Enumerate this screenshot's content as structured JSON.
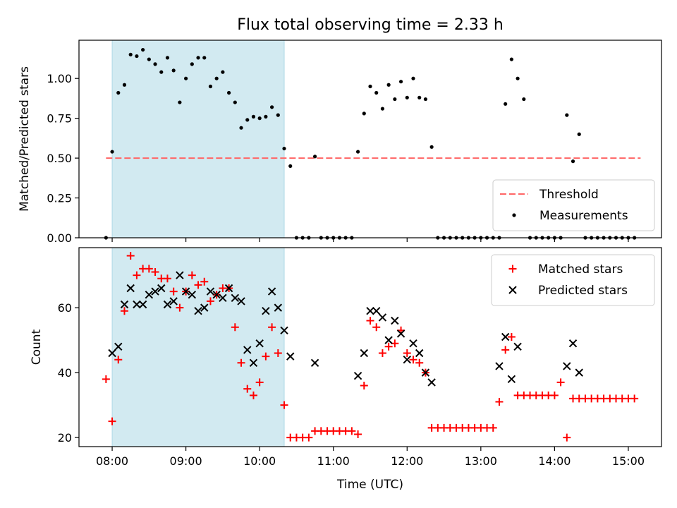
{
  "figure": {
    "title": "Flux total observing time = 2.33 h",
    "xlabel": "Time (UTC)"
  },
  "colors": {
    "shade": "#add8e6",
    "threshold": "#ff6666",
    "measurement": "#000000",
    "matched": "#ff0000",
    "predicted": "#000000"
  },
  "chart_data": [
    {
      "type": "scatter",
      "ylabel": "Matched/Predicted stars",
      "xlim": [
        "07:33",
        "15:27"
      ],
      "ylim": [
        0,
        1.24
      ],
      "yticks": [
        0.0,
        0.25,
        0.5,
        0.75,
        1.0
      ],
      "ytick_labels": [
        "0.00",
        "0.25",
        "0.50",
        "0.75",
        "1.00"
      ],
      "shaded_span": [
        "08:00",
        "10:20"
      ],
      "legend_position": "lower right",
      "threshold": {
        "name": "Threshold",
        "value": 0.5,
        "x": [
          "07:55",
          "15:10"
        ]
      },
      "series": [
        {
          "name": "Measurements",
          "x": [
            "07:55",
            "08:00",
            "08:05",
            "08:10",
            "08:15",
            "08:20",
            "08:25",
            "08:30",
            "08:35",
            "08:40",
            "08:45",
            "08:50",
            "08:55",
            "09:00",
            "09:05",
            "09:10",
            "09:15",
            "09:20",
            "09:25",
            "09:30",
            "09:35",
            "09:40",
            "09:45",
            "09:50",
            "09:55",
            "10:00",
            "10:05",
            "10:10",
            "10:15",
            "10:20",
            "10:25",
            "10:30",
            "10:35",
            "10:40",
            "10:45",
            "10:50",
            "10:55",
            "11:00",
            "11:05",
            "11:10",
            "11:15",
            "11:20",
            "11:25",
            "11:30",
            "11:35",
            "11:40",
            "11:45",
            "11:50",
            "11:55",
            "12:00",
            "12:05",
            "12:10",
            "12:15",
            "12:20",
            "12:25",
            "12:30",
            "12:35",
            "12:40",
            "12:45",
            "12:50",
            "12:55",
            "13:00",
            "13:05",
            "13:10",
            "13:15",
            "13:20",
            "13:25",
            "13:30",
            "13:35",
            "13:40",
            "13:45",
            "13:50",
            "13:55",
            "14:00",
            "14:05",
            "14:10",
            "14:15",
            "14:20",
            "14:25",
            "14:30",
            "14:35",
            "14:40",
            "14:45",
            "14:50",
            "14:55",
            "15:00",
            "15:05"
          ],
          "y": [
            0.0,
            0.54,
            0.91,
            0.96,
            1.15,
            1.14,
            1.18,
            1.12,
            1.09,
            1.04,
            1.13,
            1.05,
            0.85,
            1.0,
            1.09,
            1.13,
            1.13,
            0.95,
            1.0,
            1.04,
            0.91,
            0.85,
            0.69,
            0.74,
            0.76,
            0.75,
            0.76,
            0.82,
            0.77,
            0.56,
            0.45,
            0.0,
            0.0,
            0.0,
            0.51,
            0.0,
            0.0,
            0.0,
            0.0,
            0.0,
            0.0,
            0.54,
            0.78,
            0.95,
            0.91,
            0.81,
            0.96,
            0.87,
            0.98,
            0.88,
            1.0,
            0.88,
            0.87,
            0.57,
            0.0,
            0.0,
            0.0,
            0.0,
            0.0,
            0.0,
            0.0,
            0.0,
            0.0,
            0.0,
            0.0,
            0.84,
            1.12,
            1.0,
            0.87,
            0.0,
            0.0,
            0.0,
            0.0,
            0.0,
            0.0,
            0.77,
            0.48,
            0.65,
            0.0,
            0.0,
            0.0,
            0.0,
            0.0,
            0.0,
            0.0,
            0.0,
            0.0
          ]
        }
      ]
    },
    {
      "type": "scatter",
      "ylabel": "Count",
      "xlim": [
        "07:33",
        "15:27"
      ],
      "ylim": [
        17.2,
        78.5
      ],
      "yticks": [
        20,
        40,
        60
      ],
      "ytick_labels": [
        "20",
        "40",
        "60"
      ],
      "xticks": [
        "08:00",
        "09:00",
        "10:00",
        "11:00",
        "12:00",
        "13:00",
        "14:00",
        "15:00"
      ],
      "shaded_span": [
        "08:00",
        "10:20"
      ],
      "legend_position": "upper right",
      "series": [
        {
          "name": "Matched stars",
          "marker": "plus",
          "x": [
            "07:55",
            "08:00",
            "08:05",
            "08:10",
            "08:15",
            "08:20",
            "08:25",
            "08:30",
            "08:35",
            "08:40",
            "08:45",
            "08:50",
            "08:55",
            "09:00",
            "09:05",
            "09:10",
            "09:15",
            "09:20",
            "09:25",
            "09:30",
            "09:35",
            "09:40",
            "09:45",
            "09:50",
            "09:55",
            "10:00",
            "10:05",
            "10:10",
            "10:15",
            "10:20",
            "10:25",
            "10:30",
            "10:35",
            "10:40",
            "10:45",
            "10:50",
            "10:55",
            "11:00",
            "11:05",
            "11:10",
            "11:15",
            "11:20",
            "11:25",
            "11:30",
            "11:35",
            "11:40",
            "11:45",
            "11:50",
            "11:55",
            "12:00",
            "12:05",
            "12:10",
            "12:15",
            "12:20",
            "12:25",
            "12:30",
            "12:35",
            "12:40",
            "12:45",
            "12:50",
            "12:55",
            "13:00",
            "13:05",
            "13:10",
            "13:15",
            "13:20",
            "13:25",
            "13:30",
            "13:35",
            "13:40",
            "13:45",
            "13:50",
            "13:55",
            "14:00",
            "14:05",
            "14:10",
            "14:15",
            "14:20",
            "14:25",
            "14:30",
            "14:35",
            "14:40",
            "14:45",
            "14:50",
            "14:55",
            "15:00",
            "15:05"
          ],
          "y": [
            38,
            25,
            44,
            59,
            76,
            70,
            72,
            72,
            71,
            69,
            69,
            65,
            60,
            65,
            70,
            67,
            68,
            62,
            64,
            66,
            66,
            54,
            43,
            35,
            33,
            37,
            45,
            54,
            46,
            30,
            20,
            20,
            20,
            20,
            22,
            22,
            22,
            22,
            22,
            22,
            22,
            21,
            36,
            56,
            54,
            46,
            48,
            49,
            53,
            46,
            44,
            43,
            40,
            23,
            23,
            23,
            23,
            23,
            23,
            23,
            23,
            23,
            23,
            23,
            31,
            47,
            51,
            33,
            33,
            33,
            33,
            33,
            33,
            33,
            37,
            20,
            32,
            32,
            32,
            32,
            32,
            32,
            32,
            32,
            32,
            32,
            32
          ]
        },
        {
          "name": "Predicted stars",
          "marker": "x",
          "x": [
            "08:00",
            "08:05",
            "08:10",
            "08:15",
            "08:20",
            "08:25",
            "08:30",
            "08:35",
            "08:40",
            "08:45",
            "08:50",
            "08:55",
            "09:00",
            "09:05",
            "09:10",
            "09:15",
            "09:20",
            "09:25",
            "09:30",
            "09:35",
            "09:40",
            "09:45",
            "09:50",
            "09:55",
            "10:00",
            "10:05",
            "10:10",
            "10:15",
            "10:20",
            "10:25",
            "10:45",
            "11:20",
            "11:25",
            "11:30",
            "11:35",
            "11:40",
            "11:45",
            "11:50",
            "11:55",
            "12:00",
            "12:05",
            "12:10",
            "12:15",
            "12:20",
            "13:15",
            "13:20",
            "13:25",
            "13:30",
            "14:10",
            "14:15",
            "14:20"
          ],
          "y": [
            46,
            48,
            61,
            66,
            61,
            61,
            64,
            65,
            66,
            61,
            62,
            70,
            65,
            64,
            59,
            60,
            65,
            64,
            63,
            66,
            63,
            62,
            47,
            43,
            49,
            59,
            65,
            60,
            53,
            45,
            43,
            39,
            46,
            59,
            59,
            57,
            50,
            56,
            52,
            44,
            49,
            46,
            40,
            37,
            42,
            51,
            38,
            48,
            42,
            49,
            40
          ]
        }
      ]
    }
  ]
}
